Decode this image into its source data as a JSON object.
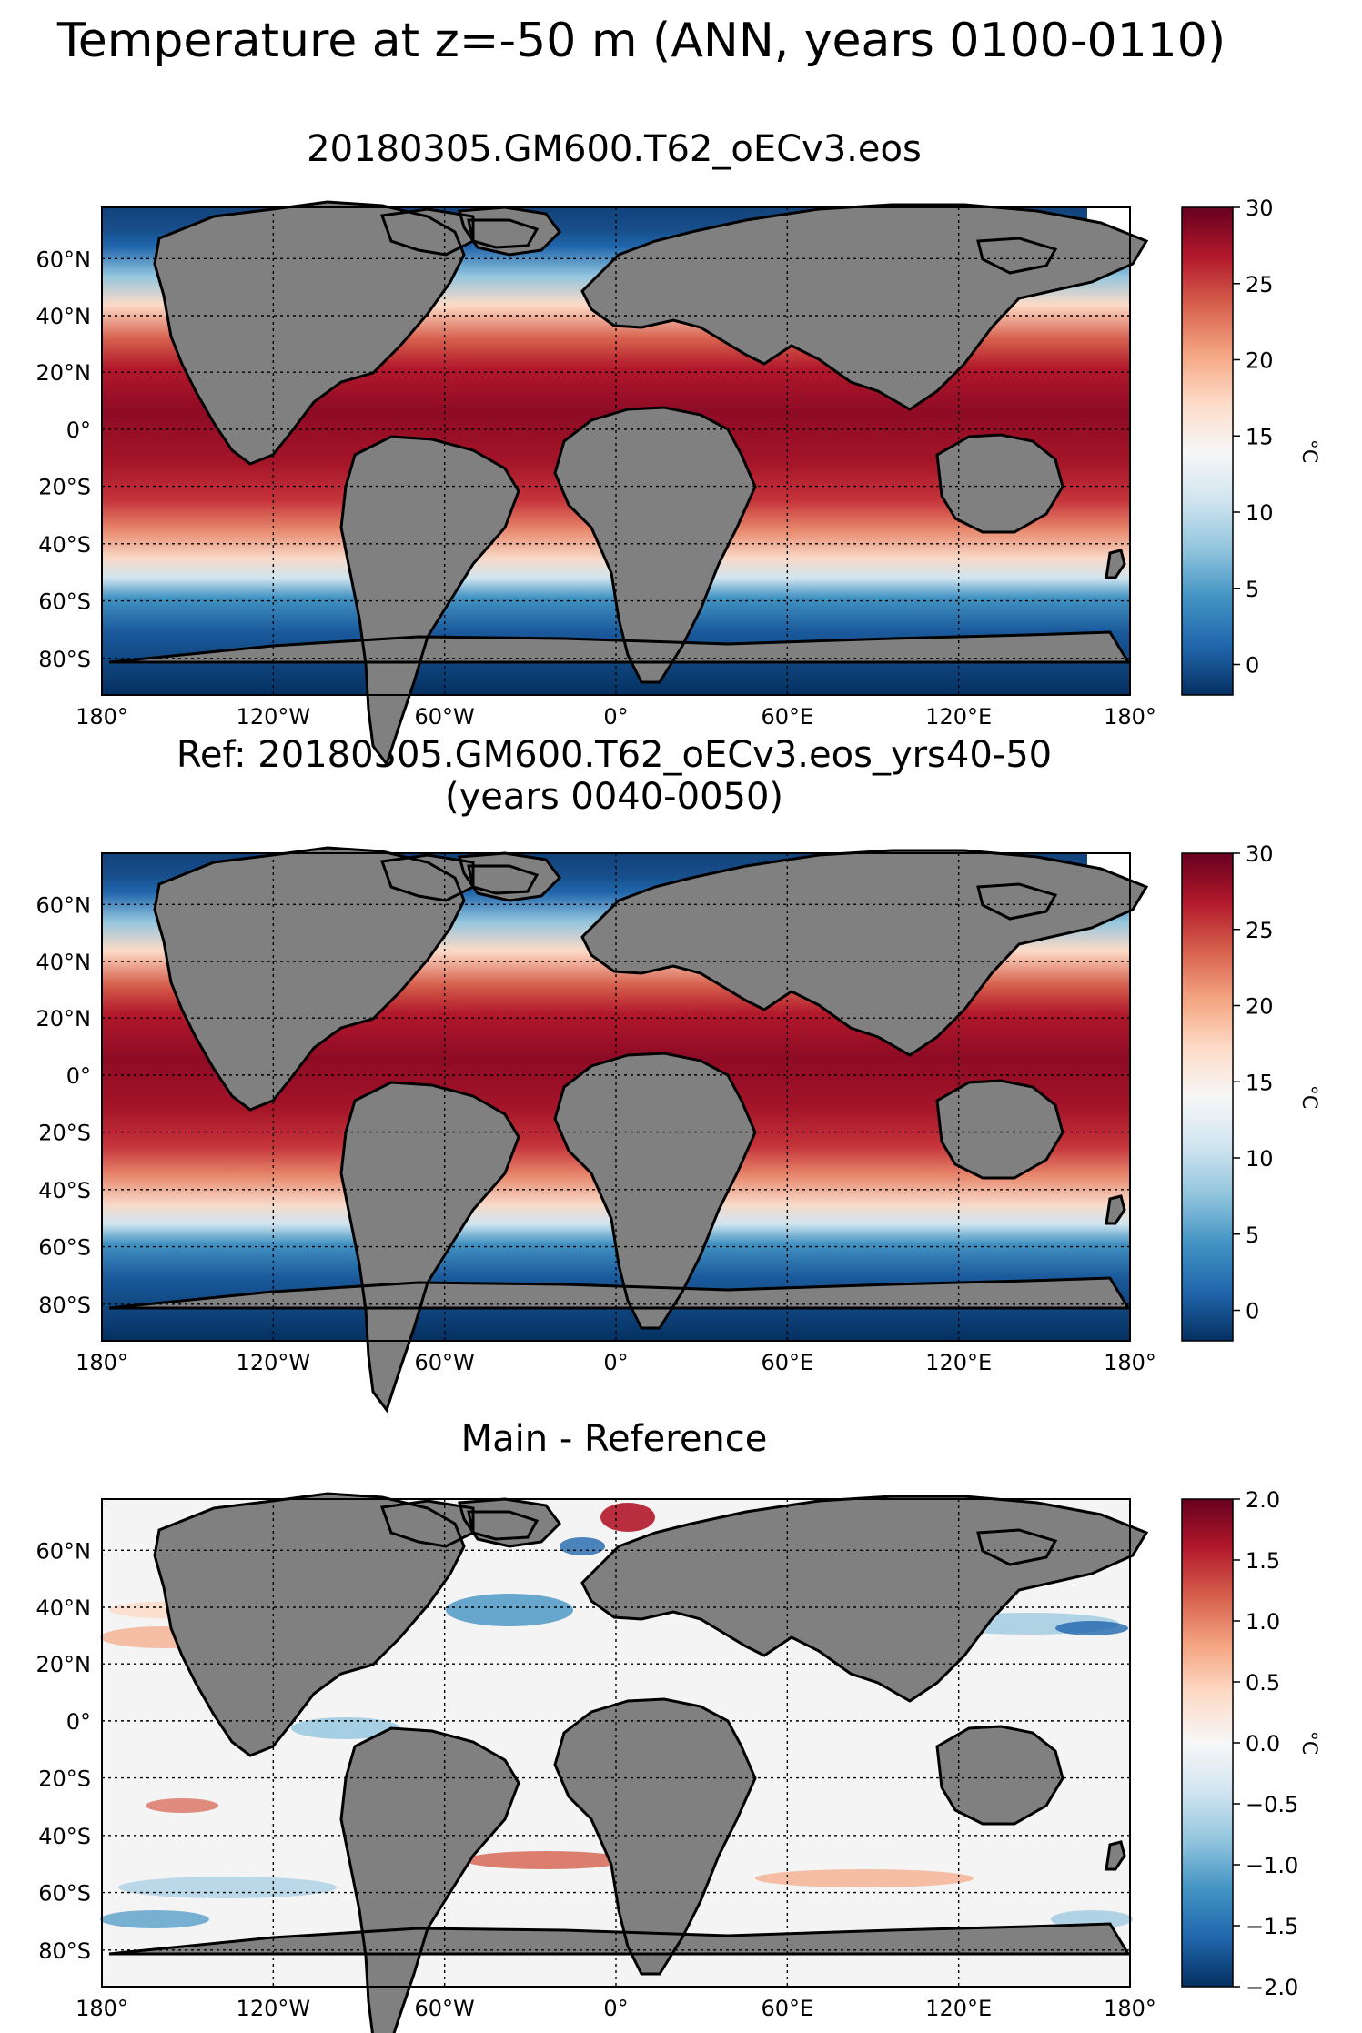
{
  "figure": {
    "title": "Temperature at z=-50 m (ANN, years 0100-0110)"
  },
  "panels": [
    {
      "title": "20180305.GM600.T62_oECv3.eos",
      "subtitle": "",
      "colorbar_label": "°C",
      "colorbar_ticks": [
        "30",
        "25",
        "20",
        "15",
        "10",
        "5",
        "0"
      ],
      "colormap": [
        "#67001f",
        "#b2182b",
        "#d6604d",
        "#f4a582",
        "#fddbc7",
        "#f7f7f7",
        "#d1e5f0",
        "#92c5de",
        "#4393c3",
        "#2166ac",
        "#053061"
      ]
    },
    {
      "title": "Ref: 20180305.GM600.T62_oECv3.eos_yrs40-50",
      "subtitle": "(years 0040-0050)",
      "colorbar_label": "°C",
      "colorbar_ticks": [
        "30",
        "25",
        "20",
        "15",
        "10",
        "5",
        "0"
      ],
      "colormap": [
        "#67001f",
        "#b2182b",
        "#d6604d",
        "#f4a582",
        "#fddbc7",
        "#f7f7f7",
        "#d1e5f0",
        "#92c5de",
        "#4393c3",
        "#2166ac",
        "#053061"
      ]
    },
    {
      "title": "Main - Reference",
      "subtitle": "",
      "colorbar_label": "°C",
      "colorbar_ticks": [
        "2.0",
        "1.5",
        "1.0",
        "0.5",
        "0.0",
        "−0.5",
        "−1.0",
        "−1.5",
        "−2.0"
      ],
      "colormap": [
        "#67001f",
        "#b2182b",
        "#d6604d",
        "#f4a582",
        "#fddbc7",
        "#f7f7f7",
        "#d1e5f0",
        "#92c5de",
        "#4393c3",
        "#2166ac",
        "#053061"
      ]
    }
  ],
  "map": {
    "lat_labels": [
      "60°N",
      "40°N",
      "20°N",
      "0°",
      "20°S",
      "40°S",
      "60°S",
      "80°S"
    ],
    "lon_labels": [
      "180°",
      "120°W",
      "60°W",
      "0°",
      "60°E",
      "120°E",
      "180°"
    ],
    "land_color": "#808080",
    "coast_color": "#000000"
  }
}
